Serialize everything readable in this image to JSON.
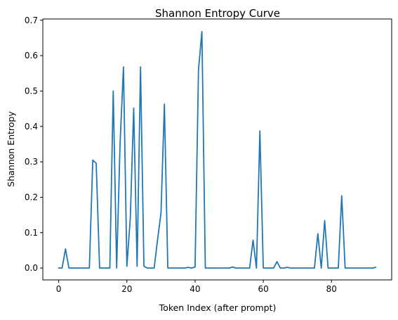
{
  "chart_data": {
    "type": "line",
    "title": "Shannon Entropy Curve",
    "xlabel": "Token Index (after prompt)",
    "ylabel": "Shannon Entropy",
    "xlim": [
      -4.65,
      97.65
    ],
    "ylim": [
      -0.0335,
      0.7035
    ],
    "xticks": [
      0,
      20,
      40,
      60,
      80
    ],
    "xtick_labels": [
      "0",
      "20",
      "40",
      "60",
      "80"
    ],
    "yticks": [
      0.0,
      0.1,
      0.2,
      0.3,
      0.4,
      0.5,
      0.6,
      0.7
    ],
    "ytick_labels": [
      "0.0",
      "0.1",
      "0.2",
      "0.3",
      "0.4",
      "0.5",
      "0.6",
      "0.7"
    ],
    "grid": false,
    "series": [
      {
        "name": "Shannon Entropy",
        "color": "#1f77b4",
        "x": [
          0,
          1,
          2,
          3,
          4,
          5,
          6,
          7,
          8,
          9,
          10,
          11,
          12,
          13,
          14,
          15,
          16,
          17,
          18,
          19,
          20,
          21,
          22,
          23,
          24,
          25,
          26,
          27,
          28,
          29,
          30,
          31,
          32,
          33,
          34,
          35,
          36,
          37,
          38,
          39,
          40,
          41,
          42,
          43,
          44,
          45,
          46,
          47,
          48,
          49,
          50,
          51,
          52,
          53,
          54,
          55,
          56,
          57,
          58,
          59,
          60,
          61,
          62,
          63,
          64,
          65,
          66,
          67,
          68,
          69,
          70,
          71,
          72,
          73,
          74,
          75,
          76,
          77,
          78,
          79,
          80,
          81,
          82,
          83,
          84,
          85,
          86,
          87,
          88,
          89,
          90,
          91,
          92,
          93
        ],
        "values": [
          0.0,
          0.0,
          0.054,
          0.0,
          0.0,
          0.0,
          0.0,
          0.0,
          0.0,
          0.0,
          0.305,
          0.296,
          0.0,
          0.0,
          0.0,
          0.0,
          0.5,
          0.0,
          0.35,
          0.568,
          0.005,
          0.14,
          0.452,
          0.005,
          0.568,
          0.005,
          0.0,
          0.0,
          0.0,
          0.08,
          0.155,
          0.463,
          0.0,
          0.0,
          0.0,
          0.0,
          0.0,
          0.0,
          0.002,
          0.0,
          0.003,
          0.56,
          0.668,
          0.0,
          0.0,
          0.0,
          0.0,
          0.0,
          0.0,
          0.0,
          0.0,
          0.003,
          0.0,
          0.0,
          0.0,
          0.0,
          0.0,
          0.079,
          0.0,
          0.387,
          0.0,
          0.0,
          0.0,
          0.0,
          0.018,
          0.0,
          0.0,
          0.002,
          0.0,
          0.0,
          0.0,
          0.0,
          0.0,
          0.0,
          0.0,
          0.0,
          0.097,
          0.0,
          0.134,
          0.0,
          0.0,
          0.0,
          0.0,
          0.204,
          0.0,
          0.0,
          0.0,
          0.0,
          0.0,
          0.0,
          0.0,
          0.0,
          0.0,
          0.002
        ]
      }
    ]
  }
}
